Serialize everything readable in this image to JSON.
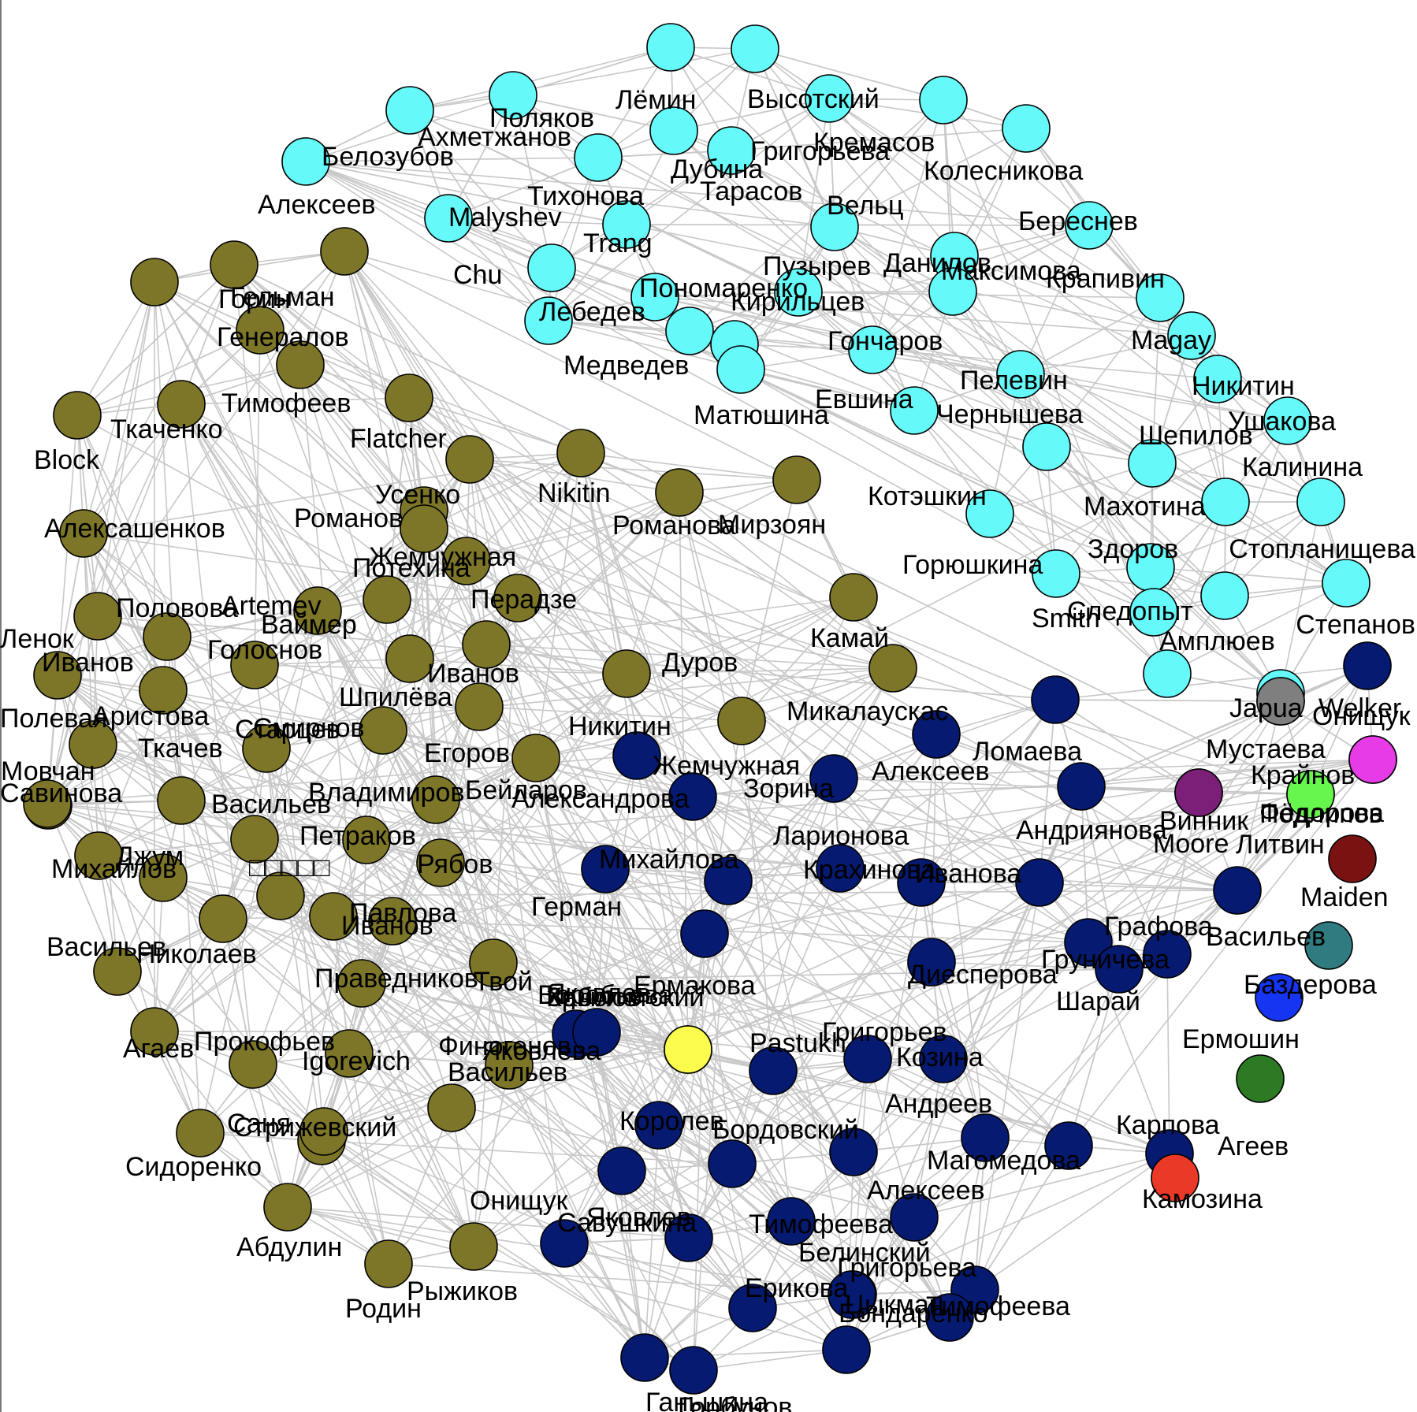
{
  "colors": {
    "cyan": "#66f9f9",
    "olive": "#7d7527",
    "navy": "#051a70",
    "yellow": "#fbfb4e",
    "gray": "#7f7f7f",
    "magenta": "#e63be6",
    "purple": "#7b1f78",
    "green": "#66f64d",
    "maroon": "#7a1212",
    "teal": "#2f7b80",
    "blue": "#1535f2",
    "dkgreen": "#2c7a24",
    "red": "#ea3a27",
    "edge": "#c8c8c8"
  },
  "nodes": [
    [
      "Лёмин",
      "cyan"
    ],
    [
      "Высотский",
      "cyan"
    ],
    [
      "Поляков",
      "cyan"
    ],
    [
      "Ахметжанов",
      "cyan"
    ],
    [
      "Белозубов",
      "cyan"
    ],
    [
      "Григорьева",
      "cyan"
    ],
    [
      "Кремасов",
      "cyan"
    ],
    [
      "Колесникова",
      "cyan"
    ],
    [
      "Дубина",
      "cyan"
    ],
    [
      "Тихонова",
      "cyan"
    ],
    [
      "Тарасов",
      "cyan"
    ],
    [
      "Вельц",
      "cyan"
    ],
    [
      "Malyshev",
      "cyan"
    ],
    [
      "Береснев",
      "cyan"
    ],
    [
      "Chu",
      "cyan"
    ],
    [
      "Данилов",
      "cyan"
    ],
    [
      "Trang",
      "cyan"
    ],
    [
      "Пузырев",
      "cyan"
    ],
    [
      "Пономаренко",
      "cyan"
    ],
    [
      "Максимова",
      "cyan"
    ],
    [
      "Крапивин",
      "cyan"
    ],
    [
      "Лебедев",
      "cyan"
    ],
    [
      "Медведев",
      "cyan"
    ],
    [
      "Кирильцев",
      "cyan"
    ],
    [
      "Гончаров",
      "cyan"
    ],
    [
      "Magay",
      "cyan"
    ],
    [
      "Никитин",
      "cyan"
    ],
    [
      "Матюшина",
      "cyan"
    ],
    [
      "Евшина",
      "cyan"
    ],
    [
      "Пелевин",
      "cyan"
    ],
    [
      "Чернышева",
      "cyan"
    ],
    [
      "Шепилов",
      "cyan"
    ],
    [
      "Ушакова",
      "cyan"
    ],
    [
      "Котэшкин",
      "cyan"
    ],
    [
      "Калинина",
      "cyan"
    ],
    [
      "Махотина",
      "cyan"
    ],
    [
      "Горюшкина",
      "cyan"
    ],
    [
      "Здоров",
      "cyan"
    ],
    [
      "Стопланищева",
      "cyan"
    ],
    [
      "Smith",
      "cyan"
    ],
    [
      "Следопыт",
      "cyan"
    ],
    [
      "Амплюев",
      "cyan"
    ],
    [
      "Japua",
      "cyan"
    ],
    [
      "Алексеев",
      "olive"
    ],
    [
      "Горин",
      "olive"
    ],
    [
      "Гельман",
      "olive"
    ],
    [
      "Генералов",
      "olive"
    ],
    [
      "Тимофеев",
      "olive"
    ],
    [
      "Block",
      "olive"
    ],
    [
      "Ткаченко",
      "olive"
    ],
    [
      "Flatcher",
      "olive"
    ],
    [
      "Усенко",
      "olive"
    ],
    [
      "Жемчужная",
      "olive"
    ],
    [
      "Nikitin",
      "olive"
    ],
    [
      "Романов",
      "olive"
    ],
    [
      "Романова",
      "olive"
    ],
    [
      "Алексашенков",
      "olive"
    ],
    [
      "Потехина",
      "olive"
    ],
    [
      "Ваймер",
      "olive"
    ],
    [
      "Ленок",
      "olive"
    ],
    [
      "Artemev",
      "olive"
    ],
    [
      "Перадзе",
      "olive"
    ],
    [
      "Половова",
      "olive"
    ],
    [
      "Шпилёва",
      "olive"
    ],
    [
      "Иванов",
      "olive"
    ],
    [
      "Иванов",
      "olive"
    ],
    [
      "Голоснов",
      "olive"
    ],
    [
      "Аристова",
      "olive"
    ],
    [
      "Егоров",
      "olive"
    ],
    [
      "Полевая",
      "olive"
    ],
    [
      "Смирнов",
      "olive"
    ],
    [
      "Мовчан",
      "olive"
    ],
    [
      "Старцев",
      "olive"
    ],
    [
      "Бейларов",
      "olive"
    ],
    [
      "Ткачев",
      "olive"
    ],
    [
      "Владимиров",
      "olive"
    ],
    [
      "Савинова",
      "olive"
    ],
    [
      "Васильев",
      "olive"
    ],
    [
      "Петраков",
      "olive"
    ],
    [
      "Джум",
      "olive"
    ],
    [
      "Михайлов",
      "olive"
    ],
    [
      "Рябов",
      "olive"
    ],
    [
      "□□□□□",
      "olive"
    ],
    [
      "Иванов",
      "olive"
    ],
    [
      "Твой",
      "olive"
    ],
    [
      "Николаев",
      "olive"
    ],
    [
      "Павлова",
      "olive"
    ],
    [
      "Васильев",
      "olive"
    ],
    [
      "Праведников",
      "olive"
    ],
    [
      "Агаев",
      "olive"
    ],
    [
      "Прокофьев",
      "olive"
    ],
    [
      "Igorevich",
      "olive"
    ],
    [
      "Финогенов",
      "olive"
    ],
    [
      "Сидоренко",
      "olive"
    ],
    [
      "Саня",
      "olive"
    ],
    [
      "Васильев",
      "olive"
    ],
    [
      "Стрижевский",
      "olive"
    ],
    [
      "Абдулин",
      "olive"
    ],
    [
      "Родин",
      "olive"
    ],
    [
      "Рыжиков",
      "olive"
    ],
    [
      "Заболотский",
      "olive"
    ],
    [
      "Мирзоян",
      "olive"
    ],
    [
      "Камай",
      "olive"
    ],
    [
      "Дуров",
      "olive"
    ],
    [
      "Никитин",
      "olive"
    ],
    [
      "Микалаускас",
      "olive"
    ],
    [
      "Жемчужная",
      "navy"
    ],
    [
      "Ломаева",
      "navy"
    ],
    [
      "Алексеев",
      "navy"
    ],
    [
      "Зорина",
      "navy"
    ],
    [
      "Александрова",
      "navy"
    ],
    [
      "Андриянова",
      "navy"
    ],
    [
      "Ларионова",
      "navy"
    ],
    [
      "Михайлова",
      "navy"
    ],
    [
      "Крахинова",
      "navy"
    ],
    [
      "Герман",
      "navy"
    ],
    [
      "Иванова",
      "navy"
    ],
    [
      "Диесперова",
      "navy"
    ],
    [
      "Груничева",
      "navy"
    ],
    [
      "Васильев",
      "navy"
    ],
    [
      "Яковлева",
      "navy"
    ],
    [
      "Ермакова",
      "navy"
    ],
    [
      "Графова",
      "navy"
    ],
    [
      "Шарай",
      "navy"
    ],
    [
      "Григорьев",
      "navy"
    ],
    [
      "Козина",
      "navy"
    ],
    [
      "Воробьева",
      "navy"
    ],
    [
      "Яковлев",
      "navy"
    ],
    [
      "Pastukh",
      "navy"
    ],
    [
      "Андреев",
      "navy"
    ],
    [
      "Королев",
      "navy"
    ],
    [
      "Бордовский",
      "navy"
    ],
    [
      "Магомедова",
      "navy"
    ],
    [
      "Карпова",
      "navy"
    ],
    [
      "Камозина",
      "navy"
    ],
    [
      "Яковлев",
      "navy"
    ],
    [
      "Тимофеева",
      "navy"
    ],
    [
      "Алексеев",
      "navy"
    ],
    [
      "Онищук",
      "navy"
    ],
    [
      "Савушкина",
      "navy"
    ],
    [
      "Ерикова",
      "navy"
    ],
    [
      "Григорьева",
      "navy"
    ],
    [
      "Цыкман",
      "navy"
    ],
    [
      "Бондаренко",
      "navy"
    ],
    [
      "Белинский",
      "navy"
    ],
    [
      "Тимофеева",
      "navy"
    ],
    [
      "Ганьшина",
      "navy"
    ],
    [
      "Горбунов",
      "navy"
    ],
    [
      "Степанов",
      "navy"
    ],
    [
      "Онищук",
      "navy"
    ],
    [
      "Крайнов",
      "navy"
    ],
    [
      "Винник",
      "navy"
    ],
    [
      "Фёдорова",
      "navy"
    ],
    [
      "Крылов",
      "yellow"
    ],
    [
      "Welker",
      "gray"
    ],
    [
      "Мустаева",
      "magenta"
    ],
    [
      "Moore",
      "purple"
    ],
    [
      "Подлипов",
      "green"
    ],
    [
      "Литвин",
      "maroon"
    ],
    [
      "Maiden",
      "teal"
    ],
    [
      "Баздерова",
      "blue"
    ],
    [
      "Ермошин",
      "dkgreen"
    ],
    [
      "Агеев",
      "red"
    ]
  ]
}
